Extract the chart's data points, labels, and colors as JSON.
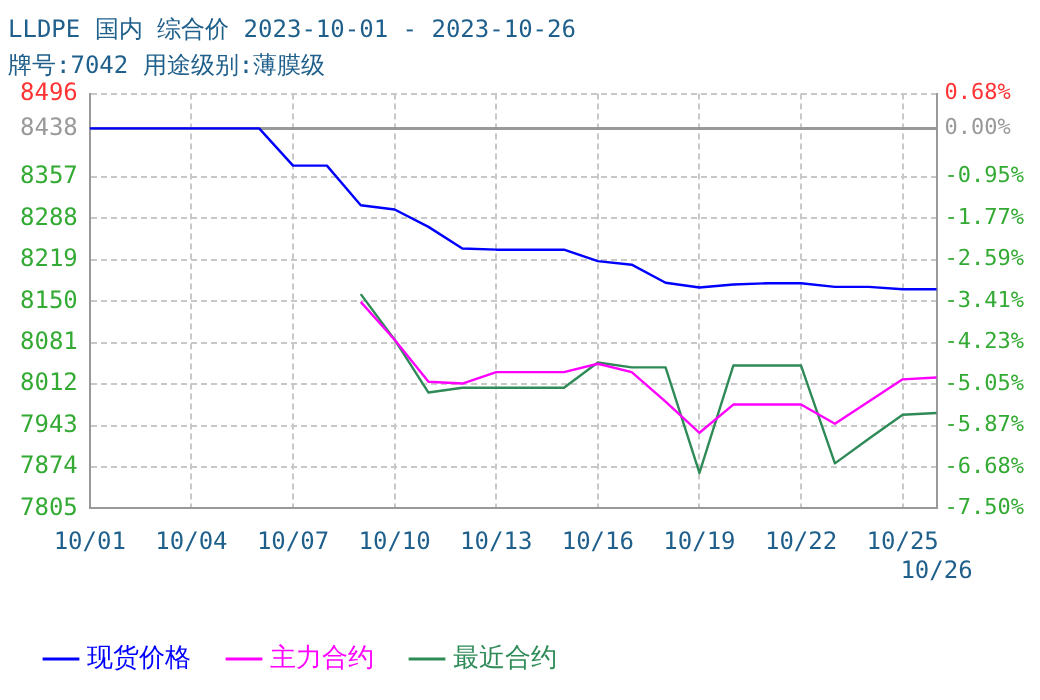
{
  "chart_data": {
    "type": "line",
    "title": "LLDPE 国内 综合价 2023-10-01 - 2023-10-26",
    "subtitle": "牌号:7042 用途级别:薄膜级",
    "categories": [
      "10/01",
      null,
      null,
      "10/04",
      null,
      null,
      "10/07",
      null,
      null,
      "10/10",
      null,
      null,
      "10/13",
      null,
      null,
      "10/16",
      null,
      null,
      "10/19",
      null,
      null,
      "10/22",
      null,
      null,
      "10/25",
      "10/26"
    ],
    "series": [
      {
        "name": "现货价格",
        "color": "#0000ff",
        "values": [
          8438,
          8438,
          8438,
          8438,
          8438,
          8438,
          8376,
          8376,
          8310,
          8303,
          8274,
          8238,
          8236,
          8236,
          8236,
          8217,
          8211,
          8181,
          8173,
          8178,
          8180,
          8180,
          8174,
          8174,
          8170,
          8170
        ]
      },
      {
        "name": "主力合约",
        "color": "#ff00ff",
        "values": [
          null,
          null,
          null,
          null,
          null,
          null,
          null,
          null,
          8149,
          8086,
          8016,
          8013,
          8032,
          8032,
          8032,
          8046,
          8032,
          7983,
          7931,
          7978,
          7978,
          7978,
          7946,
          7983,
          8020,
          8023
        ]
      },
      {
        "name": "最近合约",
        "color": "#2e8b57",
        "values": [
          null,
          null,
          null,
          null,
          null,
          null,
          null,
          null,
          8162,
          8086,
          7998,
          8006,
          8006,
          8006,
          8006,
          8048,
          8040,
          8040,
          7864,
          8043,
          8043,
          8043,
          7880,
          7921,
          7961,
          7964
        ]
      }
    ],
    "ylim": [
      7805,
      8496
    ],
    "yticks": [
      7805,
      7874,
      7943,
      8012,
      8081,
      8150,
      8219,
      8288,
      8357,
      8438,
      8496
    ],
    "y2lim": [
      -7.5,
      0.68
    ],
    "y2ticks": [
      {
        "value": -7.5,
        "label": "-7.50%"
      },
      {
        "value": -6.68,
        "label": "-6.68%"
      },
      {
        "value": -5.87,
        "label": "-5.87%"
      },
      {
        "value": -5.05,
        "label": "-5.05%"
      },
      {
        "value": -4.23,
        "label": "-4.23%"
      },
      {
        "value": -3.41,
        "label": "-3.41%"
      },
      {
        "value": -2.59,
        "label": "-2.59%"
      },
      {
        "value": -1.77,
        "label": "-1.77%"
      },
      {
        "value": -0.95,
        "label": "-0.95%"
      },
      {
        "value": 0,
        "label": "0.00%"
      },
      {
        "value": 0.68,
        "label": "0.68%"
      }
    ],
    "ref_lines": [
      {
        "axis": "y",
        "value": 8438,
        "color": "#999999"
      }
    ],
    "grid": true,
    "legend": "bottom",
    "marker": "none",
    "line_style": "solid"
  }
}
